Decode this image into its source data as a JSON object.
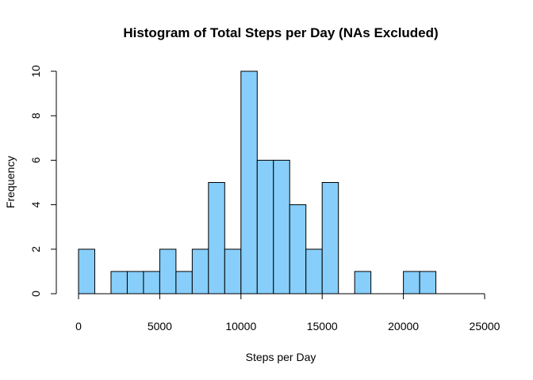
{
  "chart_data": {
    "type": "bar",
    "title": "Histogram of Total Steps per Day (NAs Excluded)",
    "xlabel": "Steps per Day",
    "ylabel": "Frequency",
    "bin_width": 1000,
    "bins_start": [
      0,
      1000,
      2000,
      3000,
      4000,
      5000,
      6000,
      7000,
      8000,
      9000,
      10000,
      11000,
      12000,
      13000,
      14000,
      15000,
      16000,
      17000,
      18000,
      19000,
      20000,
      21000,
      22000,
      23000,
      24000
    ],
    "values": [
      2,
      0,
      1,
      1,
      1,
      2,
      1,
      2,
      5,
      2,
      10,
      6,
      6,
      4,
      2,
      5,
      0,
      1,
      0,
      0,
      1,
      1,
      0,
      0,
      0
    ],
    "xlim": [
      0,
      25000
    ],
    "ylim": [
      0,
      10
    ],
    "x_ticks": [
      0,
      5000,
      10000,
      15000,
      20000,
      25000
    ],
    "y_ticks": [
      0,
      2,
      4,
      6,
      8,
      10
    ],
    "bar_color": "#87CEFA",
    "grid": false
  }
}
